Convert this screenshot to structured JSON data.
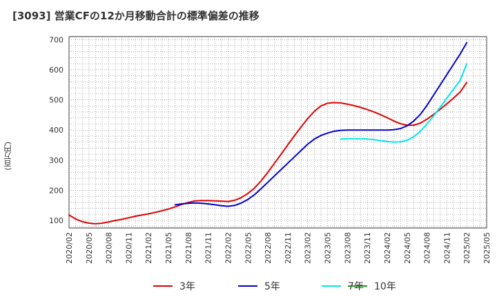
{
  "chart_data": {
    "type": "line",
    "title": "[3093]  営業CFの12か月移動合計の標準偏差の推移",
    "ylabel": "(百万円)",
    "xlabel": "",
    "ylim": [
      75,
      710
    ],
    "yticks": [
      100,
      200,
      300,
      400,
      500,
      600,
      700
    ],
    "xticks": [
      "2020/02",
      "2020/05",
      "2020/08",
      "2020/11",
      "2021/02",
      "2021/05",
      "2021/08",
      "2021/11",
      "2022/02",
      "2022/05",
      "2022/08",
      "2022/11",
      "2023/02",
      "2023/05",
      "2023/08",
      "2023/11",
      "2024/02",
      "2024/05",
      "2024/08",
      "2024/11",
      "2025/02",
      "2025/05"
    ],
    "grid": true,
    "legend_position": "bottom",
    "series": [
      {
        "name": "3年",
        "color": "#dd0000",
        "points": [
          [
            "2020/02",
            118
          ],
          [
            "2020/03",
            105
          ],
          [
            "2020/04",
            96
          ],
          [
            "2020/05",
            91
          ],
          [
            "2020/06",
            89
          ],
          [
            "2020/07",
            91
          ],
          [
            "2020/08",
            95
          ],
          [
            "2020/09",
            100
          ],
          [
            "2020/10",
            104
          ],
          [
            "2020/11",
            109
          ],
          [
            "2020/12",
            114
          ],
          [
            "2021/01",
            118
          ],
          [
            "2021/02",
            122
          ],
          [
            "2021/03",
            127
          ],
          [
            "2021/04",
            132
          ],
          [
            "2021/05",
            138
          ],
          [
            "2021/06",
            145
          ],
          [
            "2021/07",
            153
          ],
          [
            "2021/08",
            160
          ],
          [
            "2021/09",
            165
          ],
          [
            "2021/10",
            166
          ],
          [
            "2021/11",
            166
          ],
          [
            "2021/12",
            165
          ],
          [
            "2022/01",
            164
          ],
          [
            "2022/02",
            163
          ],
          [
            "2022/03",
            167
          ],
          [
            "2022/04",
            176
          ],
          [
            "2022/05",
            190
          ],
          [
            "2022/06",
            208
          ],
          [
            "2022/07",
            232
          ],
          [
            "2022/08",
            260
          ],
          [
            "2022/09",
            290
          ],
          [
            "2022/10",
            320
          ],
          [
            "2022/11",
            351
          ],
          [
            "2022/12",
            381
          ],
          [
            "2023/01",
            410
          ],
          [
            "2023/02",
            438
          ],
          [
            "2023/03",
            462
          ],
          [
            "2023/04",
            480
          ],
          [
            "2023/05",
            489
          ],
          [
            "2023/06",
            491
          ],
          [
            "2023/07",
            490
          ],
          [
            "2023/08",
            486
          ],
          [
            "2023/09",
            481
          ],
          [
            "2023/10",
            475
          ],
          [
            "2023/11",
            468
          ],
          [
            "2023/12",
            460
          ],
          [
            "2024/01",
            451
          ],
          [
            "2024/02",
            441
          ],
          [
            "2024/03",
            430
          ],
          [
            "2024/04",
            421
          ],
          [
            "2024/05",
            416
          ],
          [
            "2024/06",
            416
          ],
          [
            "2024/07",
            423
          ],
          [
            "2024/08",
            436
          ],
          [
            "2024/09",
            452
          ],
          [
            "2024/10",
            469
          ],
          [
            "2024/11",
            487
          ],
          [
            "2024/12",
            506
          ],
          [
            "2025/01",
            526
          ],
          [
            "2025/02",
            558
          ]
        ]
      },
      {
        "name": "5年",
        "color": "#0000cc",
        "points": [
          [
            "2021/06",
            152
          ],
          [
            "2021/07",
            155
          ],
          [
            "2021/08",
            157
          ],
          [
            "2021/09",
            158
          ],
          [
            "2021/10",
            157
          ],
          [
            "2021/11",
            155
          ],
          [
            "2021/12",
            152
          ],
          [
            "2022/01",
            149
          ],
          [
            "2022/02",
            147
          ],
          [
            "2022/03",
            150
          ],
          [
            "2022/04",
            158
          ],
          [
            "2022/05",
            170
          ],
          [
            "2022/06",
            186
          ],
          [
            "2022/07",
            206
          ],
          [
            "2022/08",
            227
          ],
          [
            "2022/09",
            248
          ],
          [
            "2022/10",
            269
          ],
          [
            "2022/11",
            290
          ],
          [
            "2022/12",
            311
          ],
          [
            "2023/01",
            332
          ],
          [
            "2023/02",
            353
          ],
          [
            "2023/03",
            370
          ],
          [
            "2023/04",
            382
          ],
          [
            "2023/05",
            390
          ],
          [
            "2023/06",
            396
          ],
          [
            "2023/07",
            399
          ],
          [
            "2023/08",
            400
          ],
          [
            "2023/09",
            400
          ],
          [
            "2023/10",
            400
          ],
          [
            "2023/11",
            400
          ],
          [
            "2023/12",
            400
          ],
          [
            "2024/01",
            400
          ],
          [
            "2024/02",
            400
          ],
          [
            "2024/03",
            401
          ],
          [
            "2024/04",
            405
          ],
          [
            "2024/05",
            414
          ],
          [
            "2024/06",
            430
          ],
          [
            "2024/07",
            452
          ],
          [
            "2024/08",
            482
          ],
          [
            "2024/09",
            516
          ],
          [
            "2024/10",
            550
          ],
          [
            "2024/11",
            584
          ],
          [
            "2024/12",
            618
          ],
          [
            "2025/01",
            652
          ],
          [
            "2025/02",
            690
          ]
        ]
      },
      {
        "name": "7年",
        "color": "#00e5ee",
        "points": [
          [
            "2023/07",
            370
          ],
          [
            "2023/08",
            371
          ],
          [
            "2023/09",
            371
          ],
          [
            "2023/10",
            371
          ],
          [
            "2023/11",
            370
          ],
          [
            "2023/12",
            368
          ],
          [
            "2024/01",
            365
          ],
          [
            "2024/02",
            362
          ],
          [
            "2024/03",
            360
          ],
          [
            "2024/04",
            361
          ],
          [
            "2024/05",
            366
          ],
          [
            "2024/06",
            378
          ],
          [
            "2024/07",
            396
          ],
          [
            "2024/08",
            420
          ],
          [
            "2024/09",
            447
          ],
          [
            "2024/10",
            476
          ],
          [
            "2024/11",
            506
          ],
          [
            "2024/12",
            535
          ],
          [
            "2025/01",
            565
          ],
          [
            "2025/02",
            620
          ]
        ]
      },
      {
        "name": "10年",
        "color": "#228b22",
        "points": []
      }
    ]
  }
}
